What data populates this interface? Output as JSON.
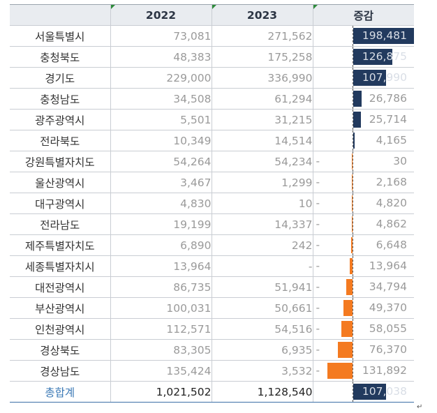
{
  "table": {
    "headers": [
      "",
      "2022",
      "2023",
      "증감"
    ],
    "rows": [
      {
        "region": "서울특별시",
        "y2022": "73,081",
        "y2023": "271,562",
        "sign": "",
        "change": "198,481",
        "value": 198481
      },
      {
        "region": "충청북도",
        "y2022": "48,383",
        "y2023": "175,258",
        "sign": "",
        "change": "126,875",
        "value": 126875
      },
      {
        "region": "경기도",
        "y2022": "229,000",
        "y2023": "336,990",
        "sign": "",
        "change": "107,990",
        "value": 107990
      },
      {
        "region": "충청남도",
        "y2022": "34,508",
        "y2023": "61,294",
        "sign": "",
        "change": "26,786",
        "value": 26786
      },
      {
        "region": "광주광역시",
        "y2022": "5,501",
        "y2023": "31,215",
        "sign": "",
        "change": "25,714",
        "value": 25714
      },
      {
        "region": "전라북도",
        "y2022": "10,349",
        "y2023": "14,514",
        "sign": "",
        "change": "4,165",
        "value": 4165
      },
      {
        "region": "강원특별자치도",
        "y2022": "54,264",
        "y2023": "54,234",
        "sign": "-",
        "change": "30",
        "value": -30
      },
      {
        "region": "울산광역시",
        "y2022": "3,467",
        "y2023": "1,299",
        "sign": "-",
        "change": "2,168",
        "value": -2168
      },
      {
        "region": "대구광역시",
        "y2022": "4,830",
        "y2023": "10",
        "sign": "-",
        "change": "4,820",
        "value": -4820
      },
      {
        "region": "전라남도",
        "y2022": "19,199",
        "y2023": "14,337",
        "sign": "-",
        "change": "4,862",
        "value": -4862
      },
      {
        "region": "제주특별자치도",
        "y2022": "6,890",
        "y2023": "242",
        "sign": "-",
        "change": "6,648",
        "value": -6648
      },
      {
        "region": "세종특별자치시",
        "y2022": "13,964",
        "y2023": "-",
        "sign": "-",
        "change": "13,964",
        "value": -13964
      },
      {
        "region": "대전광역시",
        "y2022": "86,735",
        "y2023": "51,941",
        "sign": "-",
        "change": "34,794",
        "value": -34794
      },
      {
        "region": "부산광역시",
        "y2022": "100,031",
        "y2023": "50,661",
        "sign": "-",
        "change": "49,370",
        "value": -49370
      },
      {
        "region": "인천광역시",
        "y2022": "112,571",
        "y2023": "54,516",
        "sign": "-",
        "change": "58,055",
        "value": -58055
      },
      {
        "region": "경상북도",
        "y2022": "83,305",
        "y2023": "6,935",
        "sign": "-",
        "change": "76,370",
        "value": -76370
      },
      {
        "region": "경상남도",
        "y2022": "135,424",
        "y2023": "3,532",
        "sign": "-",
        "change": "131,892",
        "value": -131892
      }
    ],
    "total": {
      "region": "총합계",
      "y2022": "1,021,502",
      "y2023": "1,128,540",
      "sign": "",
      "change": "107,038",
      "value": 107038
    }
  },
  "colors": {
    "positive": "#223a5e",
    "negative": "#f47a20",
    "total_label": "#3a78b5"
  },
  "end_mark": "↵"
}
